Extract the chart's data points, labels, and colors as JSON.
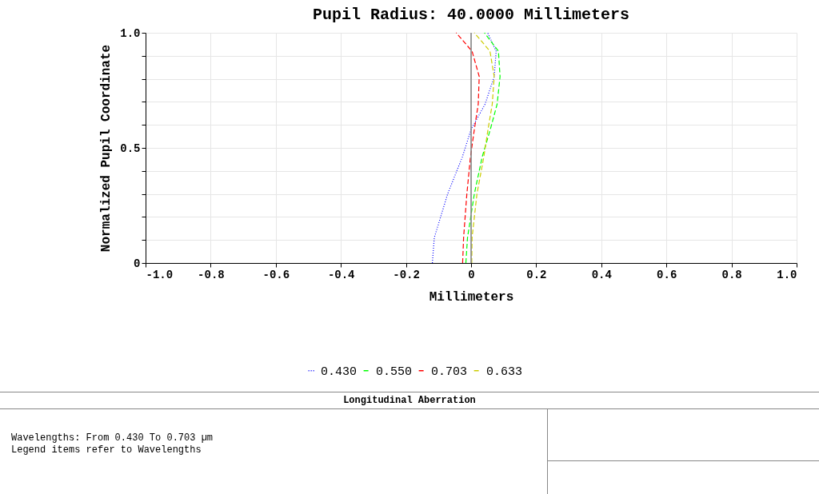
{
  "chart_data": {
    "type": "line",
    "title": "Pupil Radius: 40.0000 Millimeters",
    "xlabel": "Millimeters",
    "ylabel": "Normalized Pupil Coordinate",
    "xlim": [
      -1,
      1
    ],
    "ylim": [
      0,
      1
    ],
    "xticks": [
      {
        "value": -1,
        "label": "-1.0"
      },
      {
        "value": -0.8,
        "label": "-0.8"
      },
      {
        "value": -0.6,
        "label": "-0.6"
      },
      {
        "value": -0.4,
        "label": "-0.4"
      },
      {
        "value": -0.2,
        "label": "-0.2"
      },
      0,
      {
        "value": 0.2,
        "label": "0.2"
      },
      {
        "value": 0.4,
        "label": "0.4"
      },
      {
        "value": 0.6,
        "label": "0.6"
      },
      {
        "value": 0.8,
        "label": "0.8"
      },
      {
        "value": 1,
        "label": "1.0"
      }
    ],
    "yticks": [
      0,
      {
        "value": 0.1,
        "label": null
      },
      {
        "value": 0.2,
        "label": null
      },
      {
        "value": 0.3,
        "label": null
      },
      {
        "value": 0.4,
        "label": null
      },
      0.5,
      {
        "value": 0.6,
        "label": null
      },
      {
        "value": 0.7,
        "label": null
      },
      {
        "value": 0.8,
        "label": null
      },
      {
        "value": 0.9,
        "label": null
      },
      {
        "value": 1,
        "label": "1.0"
      }
    ],
    "grid": true,
    "legend": "bottom",
    "marker": "none",
    "ref_lines": [
      {
        "axis": "x",
        "value": 0,
        "color": "#808080"
      }
    ],
    "series": [
      {
        "name": "0.430",
        "color": "#0000ff",
        "line_style": "dotted",
        "x": [
          -0.119,
          -0.113,
          -0.072,
          -0.027,
          0,
          0.043,
          0.071,
          0.077,
          0.051
        ],
        "values": [
          0,
          0.11,
          0.3,
          0.46,
          0.58,
          0.69,
          0.81,
          0.92,
          1
        ]
      },
      {
        "name": "0.550",
        "color": "#00ff00",
        "line_style": "dashed",
        "x": [
          -0.016,
          -0.011,
          0.01,
          0.034,
          0.059,
          0.08,
          0.089,
          0.084,
          0.041
        ],
        "values": [
          0,
          0.11,
          0.3,
          0.46,
          0.58,
          0.69,
          0.81,
          0.92,
          1
        ]
      },
      {
        "name": "0.703",
        "color": "#ff0000",
        "line_style": "dashed",
        "x": [
          -0.026,
          -0.023,
          -0.013,
          -0.002,
          0.01,
          0.022,
          0.025,
          0.003,
          -0.046
        ],
        "values": [
          0,
          0.11,
          0.3,
          0.46,
          0.58,
          0.69,
          0.81,
          0.92,
          1
        ]
      },
      {
        "name": "0.633",
        "color": "#cccc00",
        "line_style": "dashed",
        "x": [
          0.002,
          0.003,
          0.018,
          0.039,
          0.052,
          0.065,
          0.071,
          0.058,
          0.01
        ],
        "values": [
          0,
          0.11,
          0.3,
          0.46,
          0.58,
          0.69,
          0.81,
          0.92,
          1
        ]
      }
    ],
    "annotations": [
      "Longitudinal Aberration",
      "Wavelengths: From 0.430 To 0.703 µm",
      "Legend items refer to Wavelengths"
    ]
  }
}
